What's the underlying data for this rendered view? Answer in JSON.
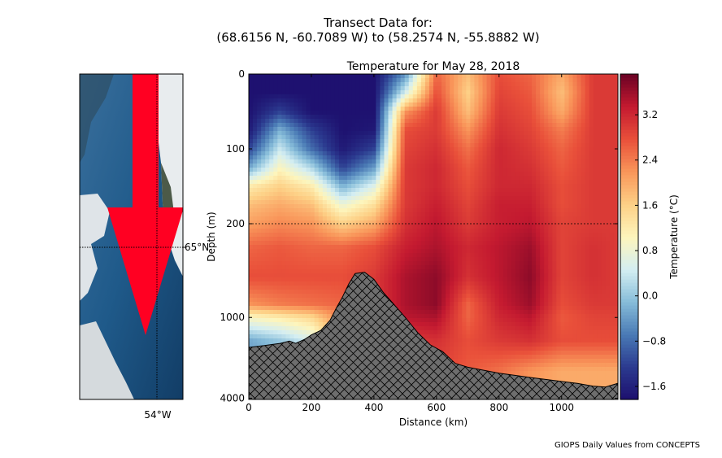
{
  "figure": {
    "title_line1": "Transect Data for:",
    "title_line2": "(68.6156 N, -60.7089 W) to (58.2574 N, -55.8882 W)",
    "footer": "GIOPS Daily Values from CONCEPTS"
  },
  "map": {
    "lat_label": "65°N",
    "lon_label": "54°W",
    "arrow_color": "#ff0022",
    "water_color": "#1f5a8a"
  },
  "chart_data": {
    "type": "heatmap",
    "title": "Temperature for May 28, 2018",
    "xlabel": "Distance (km)",
    "ylabel": "Depth (m)",
    "xlim": [
      0,
      1180
    ],
    "ylim": [
      4000,
      0
    ],
    "xticks": [
      "0",
      "200",
      "400",
      "600",
      "800",
      "1000"
    ],
    "xtick_values": [
      0,
      200,
      400,
      600,
      800,
      1000
    ],
    "yticks": [
      "0",
      "100",
      "200",
      "1000",
      "4000"
    ],
    "ytick_values": [
      0,
      100,
      200,
      1000,
      4000
    ],
    "reference_line_depth": 200,
    "colorbar": {
      "label": "Temperature (°C)",
      "range": [
        -1.83,
        3.92
      ],
      "ticks": [
        "3.2",
        "2.4",
        "1.6",
        "0.8",
        "0.0",
        "−0.8",
        "−1.6"
      ],
      "tick_values": [
        3.2,
        2.4,
        1.6,
        0.8,
        0.0,
        -0.8,
        -1.6
      ],
      "colormap": [
        "#1d0f6e",
        "#2b3a8f",
        "#4a7ab5",
        "#86bcd9",
        "#d4eef2",
        "#fdf5bc",
        "#fdd086",
        "#f9965a",
        "#e9503a",
        "#c41a30",
        "#6b0224"
      ]
    },
    "distances": [
      0,
      100,
      200,
      300,
      400,
      500,
      600,
      700,
      800,
      900,
      1000,
      1100,
      1180
    ],
    "depths": [
      0,
      25,
      50,
      75,
      100,
      125,
      150,
      175,
      200,
      300,
      500,
      800,
      1000,
      1500,
      2500,
      4000
    ],
    "temperature": [
      [
        -1.8,
        -1.8,
        -1.8,
        -1.8,
        -1.8,
        -0.5,
        2.6,
        1.8,
        2.8,
        2.6,
        2.0,
        3.0,
        3.0
      ],
      [
        -1.8,
        -1.8,
        -1.8,
        -1.8,
        -1.8,
        0.5,
        2.8,
        1.6,
        2.9,
        2.7,
        1.8,
        3.0,
        3.0
      ],
      [
        -1.8,
        -1.2,
        -1.8,
        -1.8,
        -1.8,
        2.2,
        3.0,
        1.8,
        3.0,
        2.8,
        2.0,
        3.0,
        3.0
      ],
      [
        -1.7,
        -0.2,
        -1.2,
        -1.8,
        -1.7,
        2.8,
        3.0,
        2.2,
        3.1,
        2.9,
        2.4,
        3.0,
        3.0
      ],
      [
        -1.2,
        0.4,
        -0.8,
        -1.7,
        -1.2,
        2.9,
        3.1,
        2.5,
        3.2,
        3.0,
        2.6,
        3.0,
        3.0
      ],
      [
        -0.3,
        1.0,
        0.2,
        -1.2,
        -0.4,
        3.0,
        3.2,
        2.7,
        3.2,
        3.1,
        2.7,
        3.0,
        3.0
      ],
      [
        1.2,
        1.6,
        1.2,
        -0.2,
        0.6,
        3.0,
        3.2,
        2.8,
        3.2,
        3.2,
        2.8,
        3.0,
        3.0
      ],
      [
        1.8,
        2.0,
        1.8,
        0.8,
        1.4,
        3.0,
        3.3,
        2.9,
        3.3,
        3.3,
        2.8,
        3.0,
        3.0
      ],
      [
        2.1,
        2.3,
        2.2,
        1.6,
        2.0,
        3.1,
        3.4,
        3.0,
        3.3,
        3.4,
        2.9,
        3.0,
        3.0
      ],
      [
        2.6,
        2.7,
        2.6,
        2.6,
        2.8,
        3.3,
        3.5,
        3.2,
        3.4,
        3.6,
        2.9,
        3.1,
        3.0
      ],
      [
        2.8,
        2.8,
        2.8,
        2.8,
        3.0,
        3.5,
        3.7,
        3.1,
        3.4,
        3.7,
        2.9,
        3.1,
        3.0
      ],
      [
        2.2,
        2.4,
        2.5,
        2.6,
        3.0,
        3.5,
        3.7,
        2.6,
        3.3,
        3.6,
        2.8,
        3.0,
        3.0
      ],
      [
        1.0,
        1.2,
        1.5,
        2.4,
        3.0,
        3.4,
        3.5,
        2.6,
        3.2,
        3.4,
        2.7,
        2.9,
        2.9
      ],
      [
        -0.3,
        0.0,
        0.5,
        2.0,
        2.8,
        3.0,
        3.1,
        2.8,
        3.0,
        3.1,
        2.8,
        2.8,
        2.8
      ],
      [
        -0.3,
        0.0,
        0.5,
        1.5,
        2.5,
        2.8,
        2.9,
        2.7,
        2.5,
        2.2,
        2.0,
        2.0,
        2.0
      ],
      [
        -0.3,
        0.0,
        0.5,
        1.5,
        2.5,
        2.8,
        2.9,
        2.7,
        2.5,
        2.2,
        2.0,
        2.0,
        2.0
      ]
    ],
    "bathymetry": [
      [
        0,
        1670
      ],
      [
        50,
        1620
      ],
      [
        100,
        1560
      ],
      [
        130,
        1500
      ],
      [
        150,
        1560
      ],
      [
        180,
        1450
      ],
      [
        200,
        1350
      ],
      [
        230,
        1250
      ],
      [
        260,
        1050
      ],
      [
        280,
        850
      ],
      [
        300,
        700
      ],
      [
        320,
        560
      ],
      [
        340,
        470
      ],
      [
        370,
        460
      ],
      [
        400,
        520
      ],
      [
        430,
        650
      ],
      [
        460,
        780
      ],
      [
        500,
        1000
      ],
      [
        540,
        1300
      ],
      [
        580,
        1600
      ],
      [
        620,
        1800
      ],
      [
        660,
        2200
      ],
      [
        700,
        2350
      ],
      [
        800,
        2600
      ],
      [
        900,
        2800
      ],
      [
        1000,
        3000
      ],
      [
        1050,
        3100
      ],
      [
        1100,
        3250
      ],
      [
        1140,
        3300
      ],
      [
        1180,
        3100
      ]
    ],
    "bathymetry_color": "#6e6e6e"
  }
}
